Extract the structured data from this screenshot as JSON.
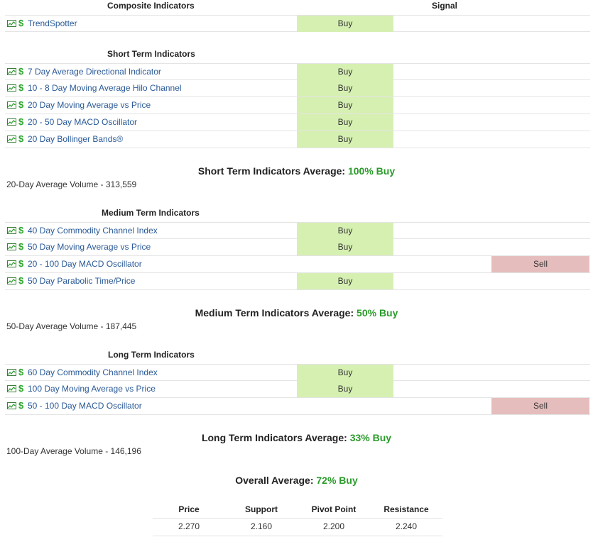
{
  "header": {
    "col_indicators": "Composite Indicators",
    "col_signal": "Signal"
  },
  "composite": [
    {
      "name": "TrendSpotter",
      "signal": "Buy"
    }
  ],
  "short_term": {
    "title": "Short Term Indicators",
    "rows": [
      {
        "name": "7 Day Average Directional Indicator",
        "signal": "Buy"
      },
      {
        "name": "10 - 8 Day Moving Average Hilo Channel",
        "signal": "Buy"
      },
      {
        "name": "20 Day Moving Average vs Price",
        "signal": "Buy"
      },
      {
        "name": "20 - 50 Day MACD Oscillator",
        "signal": "Buy"
      },
      {
        "name": "20 Day Bollinger Bands®",
        "signal": "Buy"
      }
    ],
    "avg_label": "Short Term Indicators Average: ",
    "avg_value": "100% Buy",
    "volume": "20-Day Average Volume - 313,559"
  },
  "medium_term": {
    "title": "Medium Term Indicators",
    "rows": [
      {
        "name": "40 Day Commodity Channel Index",
        "signal": "Buy"
      },
      {
        "name": "50 Day Moving Average vs Price",
        "signal": "Buy"
      },
      {
        "name": "20 - 100 Day MACD Oscillator",
        "signal": "Sell"
      },
      {
        "name": "50 Day Parabolic Time/Price",
        "signal": "Buy"
      }
    ],
    "avg_label": "Medium Term Indicators Average: ",
    "avg_value": "50% Buy",
    "volume": "50-Day Average Volume - 187,445"
  },
  "long_term": {
    "title": "Long Term Indicators",
    "rows": [
      {
        "name": "60 Day Commodity Channel Index",
        "signal": "Buy"
      },
      {
        "name": "100 Day Moving Average vs Price",
        "signal": "Buy"
      },
      {
        "name": "50 - 100 Day MACD Oscillator",
        "signal": "Sell"
      }
    ],
    "avg_label": "Long Term Indicators Average: ",
    "avg_value": "33% Buy",
    "volume": "100-Day Average Volume - 146,196"
  },
  "overall": {
    "label": "Overall Average: ",
    "value": "72% Buy"
  },
  "pivot_table": {
    "headers": [
      "Price",
      "Support",
      "Pivot Point",
      "Resistance"
    ],
    "values": [
      "2.270",
      "2.160",
      "2.200",
      "2.240"
    ]
  },
  "colors": {
    "buy_bg": "#d6f0b2",
    "sell_bg": "#e6bdbd",
    "link": "#2a5a97",
    "dollar": "#2aa52a",
    "pct": "#2a9b2a"
  },
  "icons": {
    "chart": "chart-icon",
    "dollar": "dollar-icon"
  }
}
